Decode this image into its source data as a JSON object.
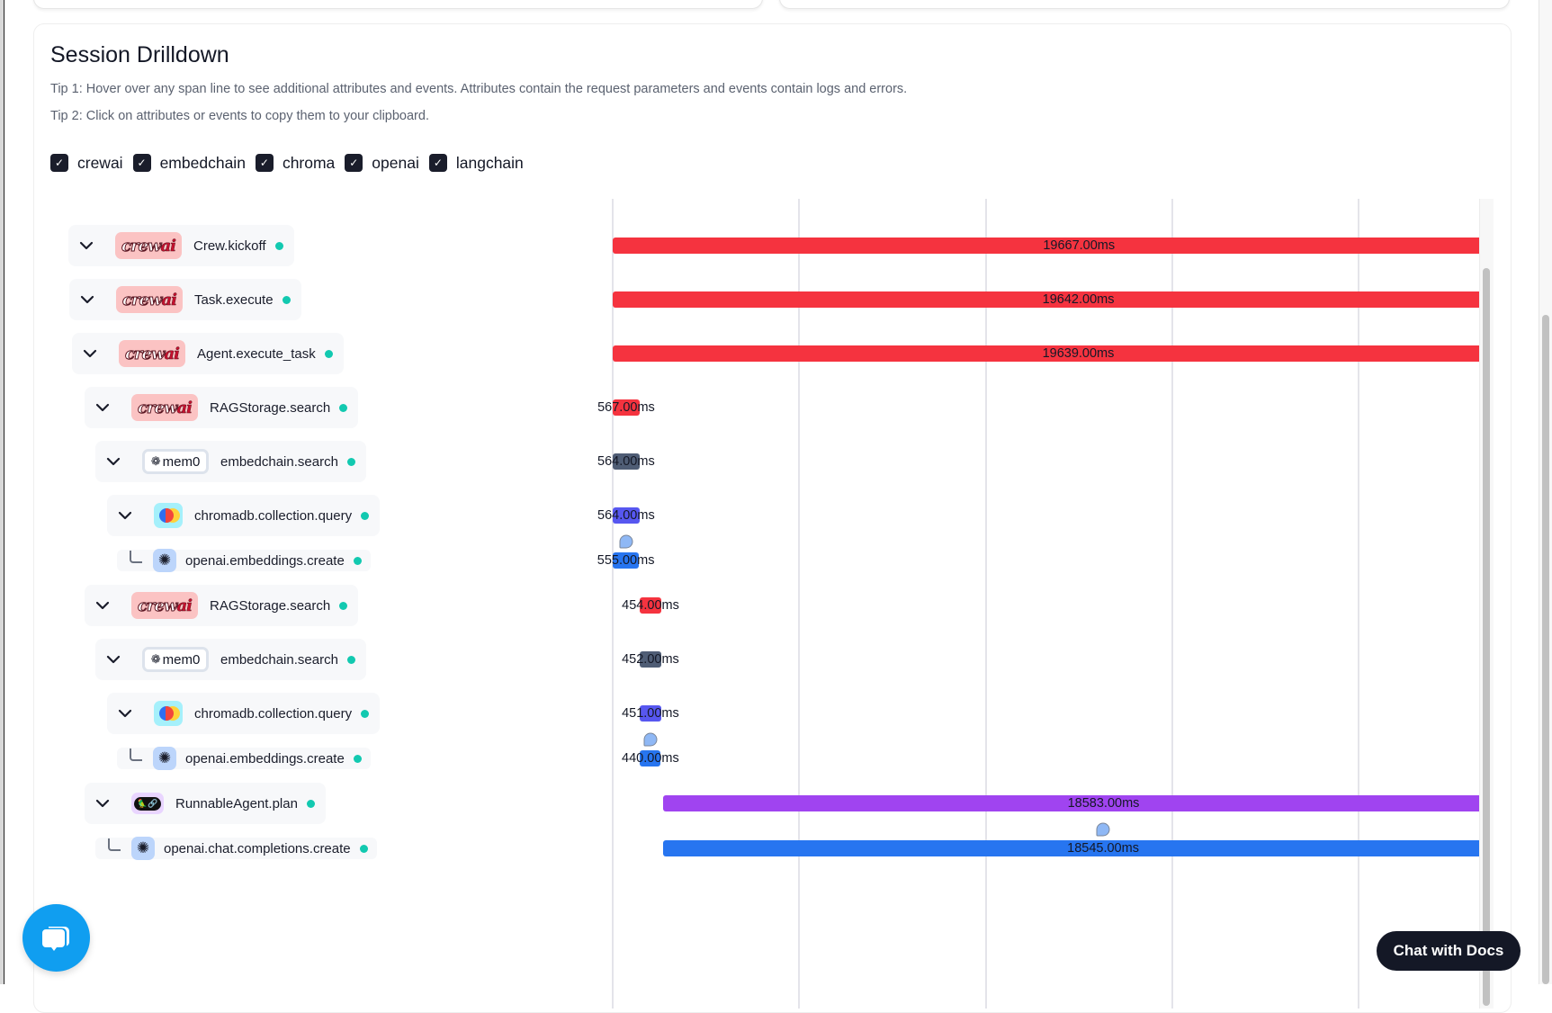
{
  "section": {
    "title": "Session Drilldown",
    "tip1": "Tip 1: Hover over any span line to see additional attributes and events. Attributes contain the request parameters and events contain logs and errors.",
    "tip2": "Tip 2: Click on attributes or events to copy them to your clipboard."
  },
  "filters": [
    {
      "label": "crewai",
      "checked": true
    },
    {
      "label": "embedchain",
      "checked": true
    },
    {
      "label": "chroma",
      "checked": true
    },
    {
      "label": "openai",
      "checked": true
    },
    {
      "label": "langchain",
      "checked": true
    }
  ],
  "colors": {
    "crewai": "#f5333f",
    "embedchain": "#4f5d75",
    "chroma": "#5757f0",
    "openai": "#2775f0",
    "langchain": "#a044f0",
    "status_ok": "#12c9b0"
  },
  "logos": {
    "crewai": "crewai",
    "mem0": "mem0"
  },
  "spans": [
    {
      "name": "Crew.kickoff",
      "provider": "crewai",
      "depth": 0,
      "leaf": false,
      "start_ms": 0,
      "duration_ms": 19667,
      "label": "19667.00ms",
      "has_event": false
    },
    {
      "name": "Task.execute",
      "provider": "crewai",
      "depth": 1,
      "leaf": false,
      "start_ms": 0,
      "duration_ms": 19642,
      "label": "19642.00ms",
      "has_event": false
    },
    {
      "name": "Agent.execute_task",
      "provider": "crewai",
      "depth": 2,
      "leaf": false,
      "start_ms": 0,
      "duration_ms": 19639,
      "label": "19639.00ms",
      "has_event": false
    },
    {
      "name": "RAGStorage.search",
      "provider": "crewai",
      "depth": 3,
      "leaf": false,
      "start_ms": 0,
      "duration_ms": 567,
      "label": "567.00ms",
      "has_event": false
    },
    {
      "name": "embedchain.search",
      "provider": "embedchain",
      "depth": 4,
      "leaf": false,
      "start_ms": 0,
      "duration_ms": 564,
      "label": "564.00ms",
      "has_event": false
    },
    {
      "name": "chromadb.collection.query",
      "provider": "chroma",
      "depth": 5,
      "leaf": false,
      "start_ms": 0,
      "duration_ms": 564,
      "label": "564.00ms",
      "has_event": false
    },
    {
      "name": "openai.embeddings.create",
      "provider": "openai",
      "depth": 6,
      "leaf": true,
      "start_ms": 0,
      "duration_ms": 555,
      "label": "555.00ms",
      "has_event": true
    },
    {
      "name": "RAGStorage.search",
      "provider": "crewai",
      "depth": 3,
      "leaf": false,
      "start_ms": 570,
      "duration_ms": 454,
      "label": "454.00ms",
      "has_event": false
    },
    {
      "name": "embedchain.search",
      "provider": "embedchain",
      "depth": 4,
      "leaf": false,
      "start_ms": 570,
      "duration_ms": 452,
      "label": "452.00ms",
      "has_event": false
    },
    {
      "name": "chromadb.collection.query",
      "provider": "chroma",
      "depth": 5,
      "leaf": false,
      "start_ms": 570,
      "duration_ms": 451,
      "label": "451.00ms",
      "has_event": false
    },
    {
      "name": "openai.embeddings.create",
      "provider": "openai",
      "depth": 6,
      "leaf": true,
      "start_ms": 575,
      "duration_ms": 440,
      "label": "440.00ms",
      "has_event": true
    },
    {
      "name": "RunnableAgent.plan",
      "provider": "langchain",
      "depth": 3,
      "leaf": false,
      "start_ms": 1060,
      "duration_ms": 18583,
      "label": "18583.00ms",
      "has_event": false
    },
    {
      "name": "openai.chat.completions.create",
      "provider": "openai",
      "depth": 4,
      "leaf": true,
      "start_ms": 1070,
      "duration_ms": 18545,
      "label": "18545.00ms",
      "has_event": true
    }
  ],
  "chat_with_docs": "Chat with Docs"
}
